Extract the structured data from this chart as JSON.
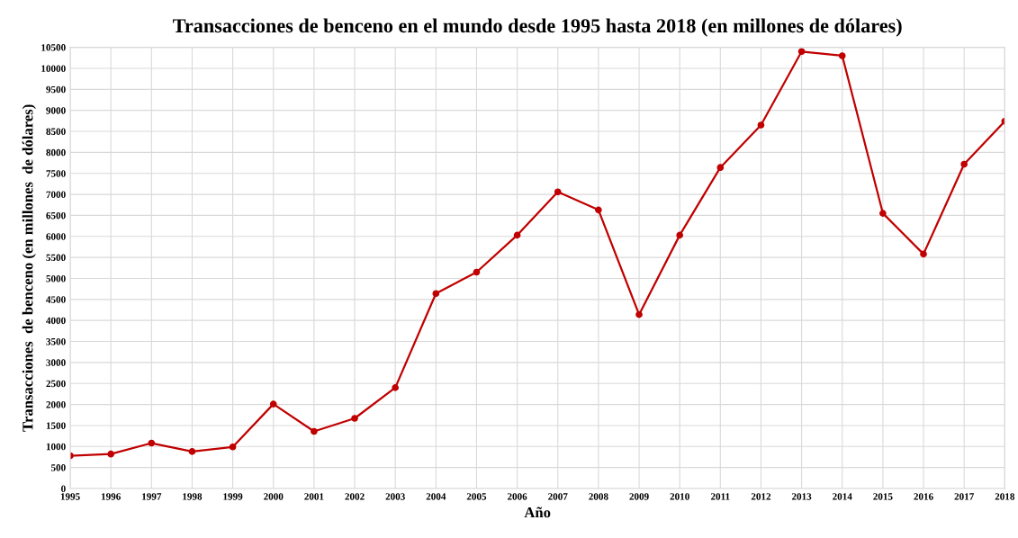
{
  "chart_data": {
    "type": "line",
    "title": "Transacciones de benceno en el mundo desde 1995 hasta 2018 (en millones de dólares)",
    "xlabel": "Año",
    "ylabel": "Transacciones  de benceno (en millones  de dólares)",
    "x": [
      1995,
      1996,
      1997,
      1998,
      1999,
      2000,
      2001,
      2002,
      2003,
      2004,
      2005,
      2006,
      2007,
      2008,
      2009,
      2010,
      2011,
      2012,
      2013,
      2014,
      2015,
      2016,
      2017,
      2018
    ],
    "series": [
      {
        "color": "#c00000",
        "values": [
          780,
          820,
          1080,
          880,
          990,
          2010,
          1360,
          1670,
          2400,
          4640,
          5150,
          6030,
          7060,
          6630,
          4140,
          6030,
          7640,
          8650,
          10400,
          10300,
          6550,
          5580,
          7720,
          8740
        ]
      }
    ],
    "xlim": [
      1995,
      2018
    ],
    "xticks": [
      1995,
      1996,
      1997,
      1998,
      1999,
      2000,
      2001,
      2002,
      2003,
      2004,
      2005,
      2006,
      2007,
      2008,
      2009,
      2010,
      2011,
      2012,
      2013,
      2014,
      2015,
      2016,
      2017,
      2018
    ],
    "ylim": [
      0,
      10500
    ],
    "yticks": [
      0,
      500,
      1000,
      1500,
      2000,
      2500,
      3000,
      3500,
      4000,
      4500,
      5000,
      5500,
      6000,
      6500,
      7000,
      7500,
      8000,
      8500,
      9000,
      9500,
      10000,
      10500
    ],
    "grid": true,
    "marker": "circle",
    "line_style": "solid"
  }
}
